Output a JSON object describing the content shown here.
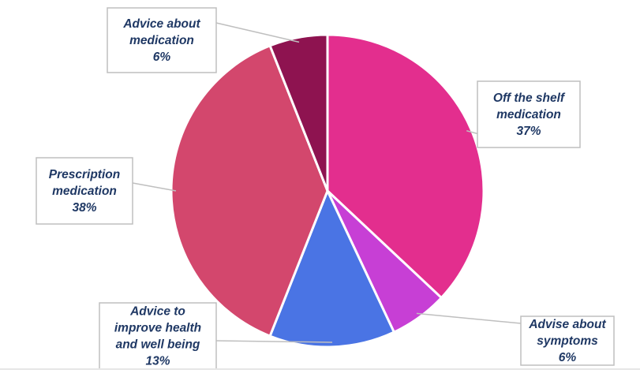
{
  "chart_data": {
    "type": "pie",
    "slices": [
      {
        "label": "Off the shelf medication",
        "lines": [
          "Off the shelf",
          "medication",
          "37%"
        ],
        "value": 37,
        "color": "#e32e8e"
      },
      {
        "label": "Advise about symptoms",
        "lines": [
          "Advise about",
          "symptoms",
          "6%"
        ],
        "value": 6,
        "color": "#c73fd5"
      },
      {
        "label": "Advice to improve health and well being",
        "lines": [
          "Advice to",
          "improve health",
          "and well being",
          "13%"
        ],
        "value": 13,
        "color": "#4a74e4"
      },
      {
        "label": "Prescription medication",
        "lines": [
          "Prescription",
          "medication",
          "38%"
        ],
        "value": 38,
        "color": "#d3476d"
      },
      {
        "label": "Advice about medication",
        "lines": [
          "Advice about",
          "medication",
          "6%"
        ],
        "value": 6,
        "color": "#8e1350"
      }
    ]
  }
}
